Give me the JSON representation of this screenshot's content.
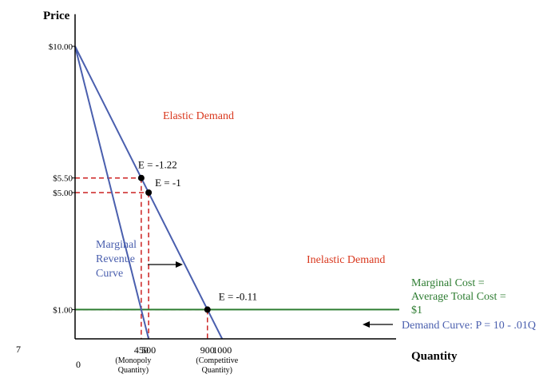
{
  "page_number": "7",
  "chart_data": {
    "type": "line",
    "title": "",
    "ylabel": "Price",
    "xlabel": "Quantity",
    "xlim": [
      0,
      1100
    ],
    "ylim": [
      0,
      11.1
    ],
    "grid": false,
    "x_origin_label": "0",
    "y_ticks": [
      {
        "value": 10,
        "label": "$10.00"
      },
      {
        "value": 5.5,
        "label": "$5.50"
      },
      {
        "value": 5,
        "label": "$5.00"
      },
      {
        "value": 1,
        "label": "$1.00"
      }
    ],
    "x_ticks": [
      {
        "value": 450,
        "label": "450",
        "sub": [
          "(Monopoly",
          "Quantity)"
        ]
      },
      {
        "value": 500,
        "label": "500",
        "sub": []
      },
      {
        "value": 900,
        "label": "900",
        "sub": [
          "(Competitive",
          "Quantity)"
        ]
      },
      {
        "value": 1000,
        "label": "1000",
        "sub": []
      }
    ],
    "series": [
      {
        "name": "Demand Curve: P = 10 - .01Q",
        "color": "#4a5fae",
        "x": [
          0,
          1000
        ],
        "y": [
          10,
          0
        ]
      },
      {
        "name": "Marginal Revenue Curve",
        "color": "#4a5fae",
        "x": [
          0,
          500
        ],
        "y": [
          10,
          0
        ]
      },
      {
        "name": "Marginal Cost = Average Total Cost = $1",
        "color": "#2e7d32",
        "x": [
          0,
          1100
        ],
        "y": [
          1,
          1
        ]
      }
    ],
    "points": [
      {
        "x": 450,
        "y": 5.5,
        "label": "E = -1.22"
      },
      {
        "x": 500,
        "y": 5,
        "label": "E = -1"
      },
      {
        "x": 900,
        "y": 1,
        "label": "E = -0.11"
      }
    ],
    "dashed_guides": [
      {
        "x": 450,
        "y": 5.5
      },
      {
        "x": 500,
        "y": 5
      },
      {
        "x": 900,
        "y": 1
      }
    ],
    "guide_color": "#cc2222",
    "annotations": {
      "elastic": "Elastic Demand",
      "inelastic": "Inelastic Demand",
      "mr_label": [
        "Marginal",
        "Revenue",
        "Curve"
      ],
      "mc_label": [
        "Marginal Cost =",
        "Average Total Cost =",
        "$1"
      ],
      "demand_label": "Demand Curve: P = 10 - .01Q"
    },
    "colors": {
      "axis": "#000000",
      "curve": "#4a5fae",
      "mc": "#2e7d32",
      "annotation": "#d9381e",
      "text": "#000000"
    }
  }
}
